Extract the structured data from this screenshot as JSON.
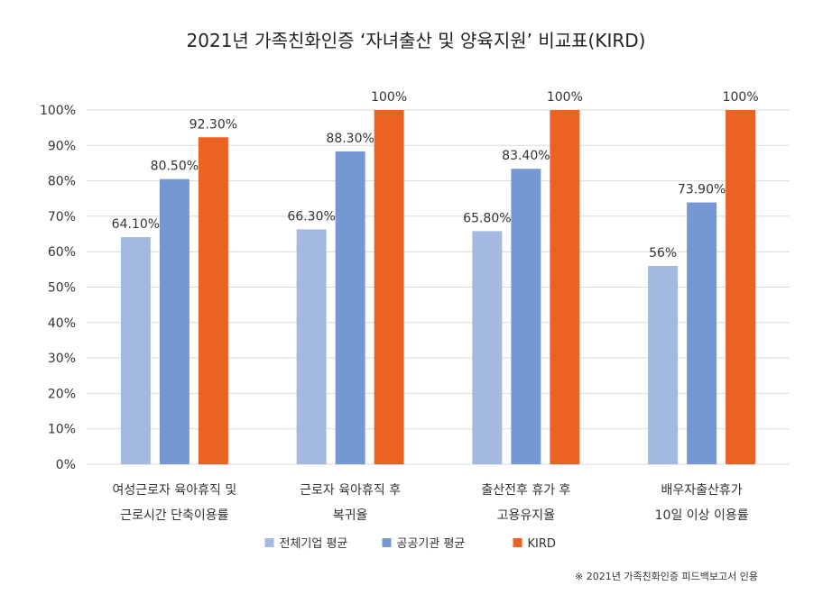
{
  "chart_data": {
    "type": "bar",
    "title": "2021년 가족친화인증 ‘자녀출산 및 양육지원’ 비교표(KIRD)",
    "categories": [
      [
        "여성근로자 육아휴직 및",
        "근로시간 단축이용률"
      ],
      [
        "근로자 육아휴직 후",
        "복귀율"
      ],
      [
        "출산전후 휴가 후",
        "고용유지율"
      ],
      [
        "배우자출산휴가",
        "10일 이상 이용률"
      ]
    ],
    "series": [
      {
        "name": "전체기업 평균",
        "color": "#a3b9e0",
        "values": [
          64.1,
          66.3,
          65.8,
          56
        ],
        "labels": [
          "64.10%",
          "66.30%",
          "65.80%",
          "56%"
        ]
      },
      {
        "name": "공공기관 평균",
        "color": "#7597d4",
        "values": [
          80.5,
          88.3,
          83.4,
          73.9
        ],
        "labels": [
          "80.50%",
          "88.30%",
          "83.40%",
          "73.90%"
        ]
      },
      {
        "name": "KIRD",
        "color": "#ec6223",
        "values": [
          92.3,
          100,
          100,
          100
        ],
        "labels": [
          "92.30%",
          "100%",
          "100%",
          "100%"
        ]
      }
    ],
    "ylim": [
      0,
      100
    ],
    "yticks": [
      "0%",
      "10%",
      "20%",
      "30%",
      "40%",
      "50%",
      "60%",
      "70%",
      "80%",
      "90%",
      "100%"
    ],
    "grid": true,
    "legend_position": "bottom",
    "footnote": "※ 2021년 가족친화인증 피드백보고서 인용"
  }
}
